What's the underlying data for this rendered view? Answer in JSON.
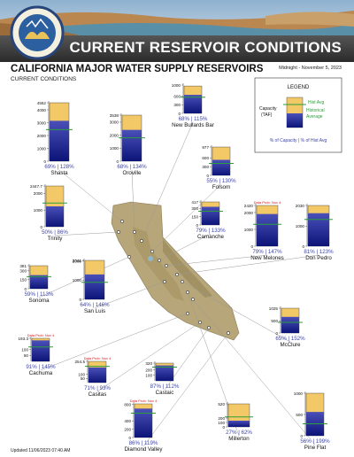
{
  "banner": {
    "title": "CURRENT RESERVOIR CONDITIONS"
  },
  "header": {
    "title": "CALIFORNIA MAJOR WATER SUPPLY RESERVOIRS",
    "subtitle": "CURRENT CONDITIONS",
    "date": "Midnight - November 5, 2023"
  },
  "legend": {
    "title": "LEGEND",
    "hist_avg": "Hist Avg",
    "capacity": "Capacity",
    "taf": "(TAF)",
    "historical": "Historical",
    "average": "Average",
    "pct_capacity": "% of Capacity",
    "sep": "|",
    "pct_hist_avg": "% of Hist Avg"
  },
  "updated": "Updated 11/06/2023 07:40 AM",
  "colors": {
    "capacity_fill": "#f3c867",
    "storage_top": "#4a50b8",
    "storage_bottom": "#0c1478",
    "hist_avg_line": "#2c9e3c",
    "pct_text": "#3f46a8",
    "data_problem": "#d0191d",
    "map_land": "#b7a679",
    "map_water": "#8fb7c9"
  },
  "chart_data": {
    "type": "bar",
    "unit": "TAF",
    "reservoirs": [
      {
        "name": "Shasta",
        "capacity": 4552,
        "ticks": [
          "4552",
          "4000",
          "3000",
          "2000",
          "1000",
          "0"
        ],
        "storage": 3145,
        "hist_avg": 2457,
        "pct_capacity": "69%",
        "pct_hist": "128%"
      },
      {
        "name": "Oroville",
        "capacity": 3538,
        "ticks": [
          "3538",
          "3000",
          "2000",
          "1000",
          "0"
        ],
        "storage": 2404,
        "hist_avg": 1794,
        "pct_capacity": "68%",
        "pct_hist": "134%"
      },
      {
        "name": "New Bullards Bar",
        "capacity": 966,
        "ticks": [
          "1000",
          "600",
          "300",
          "0"
        ],
        "storage": 654,
        "hist_avg": 569,
        "pct_capacity": "68%",
        "pct_hist": "115%"
      },
      {
        "name": "Folsom",
        "capacity": 977,
        "ticks": [
          "977",
          "600",
          "300",
          "0"
        ],
        "storage": 535,
        "hist_avg": 411,
        "pct_capacity": "55%",
        "pct_hist": "130%"
      },
      {
        "name": "Trinity",
        "capacity": 2447.7,
        "ticks": [
          "2447.7",
          "2000",
          "1000",
          "0"
        ],
        "storage": 1224,
        "hist_avg": 1425,
        "pct_capacity": "50%",
        "pct_hist": "86%"
      },
      {
        "name": "Camanche",
        "capacity": 417,
        "ticks": [
          "417",
          "300",
          "150",
          "0"
        ],
        "storage": 329,
        "hist_avg": 248,
        "pct_capacity": "79%",
        "pct_hist": "133%"
      },
      {
        "name": "New Melones",
        "capacity": 2420,
        "ticks": [
          "2420",
          "2000",
          "1000",
          "0"
        ],
        "storage": 1912,
        "hist_avg": 1301,
        "pct_capacity": "79%",
        "pct_hist": "147%",
        "note": "Data Prob: Nov 4"
      },
      {
        "name": "Don Pedro",
        "capacity": 2030,
        "ticks": [
          "2030",
          "1000",
          "0"
        ],
        "storage": 1644,
        "hist_avg": 1337,
        "pct_capacity": "81%",
        "pct_hist": "123%"
      },
      {
        "name": "Sonoma",
        "capacity": 381,
        "ticks": [
          "381",
          "300",
          "150",
          "0"
        ],
        "storage": 225,
        "hist_avg": 199,
        "pct_capacity": "59%",
        "pct_hist": "113%"
      },
      {
        "name": "San Luis",
        "capacity": 2041,
        "ticks": [
          "2041",
          "2000",
          "1000",
          "0"
        ],
        "storage": 1306,
        "hist_avg": 894,
        "pct_capacity": "64%",
        "pct_hist": "146%"
      },
      {
        "name": "McClure",
        "capacity": 1025,
        "ticks": [
          "1025",
          "500",
          "0"
        ],
        "storage": 666,
        "hist_avg": 438,
        "pct_capacity": "65%",
        "pct_hist": "152%"
      },
      {
        "name": "Cachuma",
        "capacity": 193.3,
        "ticks": [
          "193.3",
          "100",
          "50"
        ],
        "storage": 176,
        "hist_avg": 121,
        "pct_capacity": "91%",
        "pct_hist": "145%",
        "note": "Data Prob: Nov 4"
      },
      {
        "name": "Castaic",
        "capacity": 320,
        "ticks": [
          "320",
          "200",
          "100"
        ],
        "storage": 278,
        "hist_avg": 248,
        "pct_capacity": "87%",
        "pct_hist": "112%"
      },
      {
        "name": "Casitas",
        "capacity": 254.5,
        "ticks": [
          "254.5",
          "100",
          "50"
        ],
        "storage": 181,
        "hist_avg": 195,
        "pct_capacity": "71%",
        "pct_hist": "93%",
        "note": "Data Prob: Nov 4"
      },
      {
        "name": "Diamond Valley",
        "capacity": 810,
        "ticks": [
          "800",
          "400",
          "200",
          "0"
        ],
        "storage": 697,
        "hist_avg": 585,
        "pct_capacity": "86%",
        "pct_hist": "119%",
        "note": "Data Prob: Nov 4"
      },
      {
        "name": "Millerton",
        "capacity": 520,
        "ticks": [
          "520",
          "200",
          "100",
          "0"
        ],
        "storage": 140,
        "hist_avg": 226,
        "pct_capacity": "27%",
        "pct_hist": "62%"
      },
      {
        "name": "Pine Flat",
        "capacity": 1000,
        "ticks": [
          "1000",
          "500",
          "0"
        ],
        "storage": 560,
        "hist_avg": 281,
        "pct_capacity": "56%",
        "pct_hist": "199%"
      }
    ]
  }
}
